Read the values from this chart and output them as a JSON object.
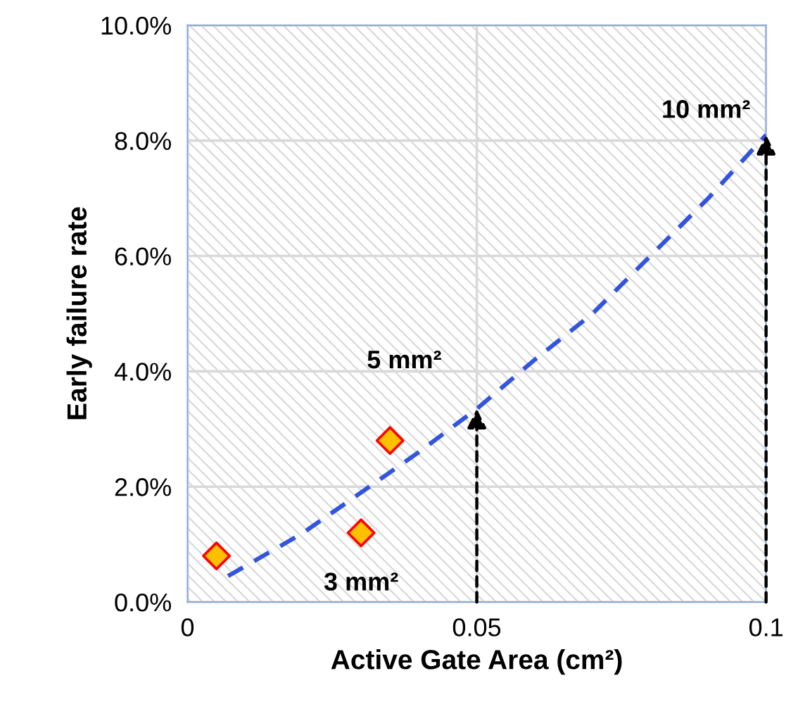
{
  "chart_data": {
    "type": "scatter",
    "xlabel": "Active Gate Area (cm²)",
    "ylabel": "Early failure rate",
    "xlim": [
      0,
      0.1
    ],
    "ylim": [
      0,
      10
    ],
    "xticks": [
      0,
      0.05,
      0.1
    ],
    "yticks": [
      {
        "value": 0,
        "label": "0.0%"
      },
      {
        "value": 2,
        "label": "2.0%"
      },
      {
        "value": 4,
        "label": "4.0%"
      },
      {
        "value": 6,
        "label": "6.0%"
      },
      {
        "value": 8,
        "label": "8.0%"
      },
      {
        "value": 10,
        "label": "10.0%"
      }
    ],
    "grid": true,
    "series": [
      {
        "color": "#ffc000",
        "marker": "diamond",
        "x": [
          0.005,
          0.03,
          0.035
        ],
        "values": [
          0.8,
          1.2,
          2.8
        ]
      },
      {
        "type": "line",
        "color": "#3355dd",
        "line_style": "dashed",
        "marker": "none",
        "x": [
          0.007,
          0.02,
          0.03,
          0.04,
          0.05,
          0.06,
          0.07,
          0.08,
          0.09,
          0.1
        ],
        "values": [
          0.45,
          1.2,
          1.9,
          2.6,
          3.35,
          4.2,
          5.0,
          6.0,
          7.0,
          8.1
        ]
      }
    ],
    "annotations": [
      {
        "text": "3 mm²",
        "x": 0.03,
        "y": 1.2
      },
      {
        "text": "5 mm²",
        "x": 0.05,
        "y": 3.35
      },
      {
        "text": "10 mm²",
        "x": 0.1,
        "y": 8.1
      }
    ]
  }
}
